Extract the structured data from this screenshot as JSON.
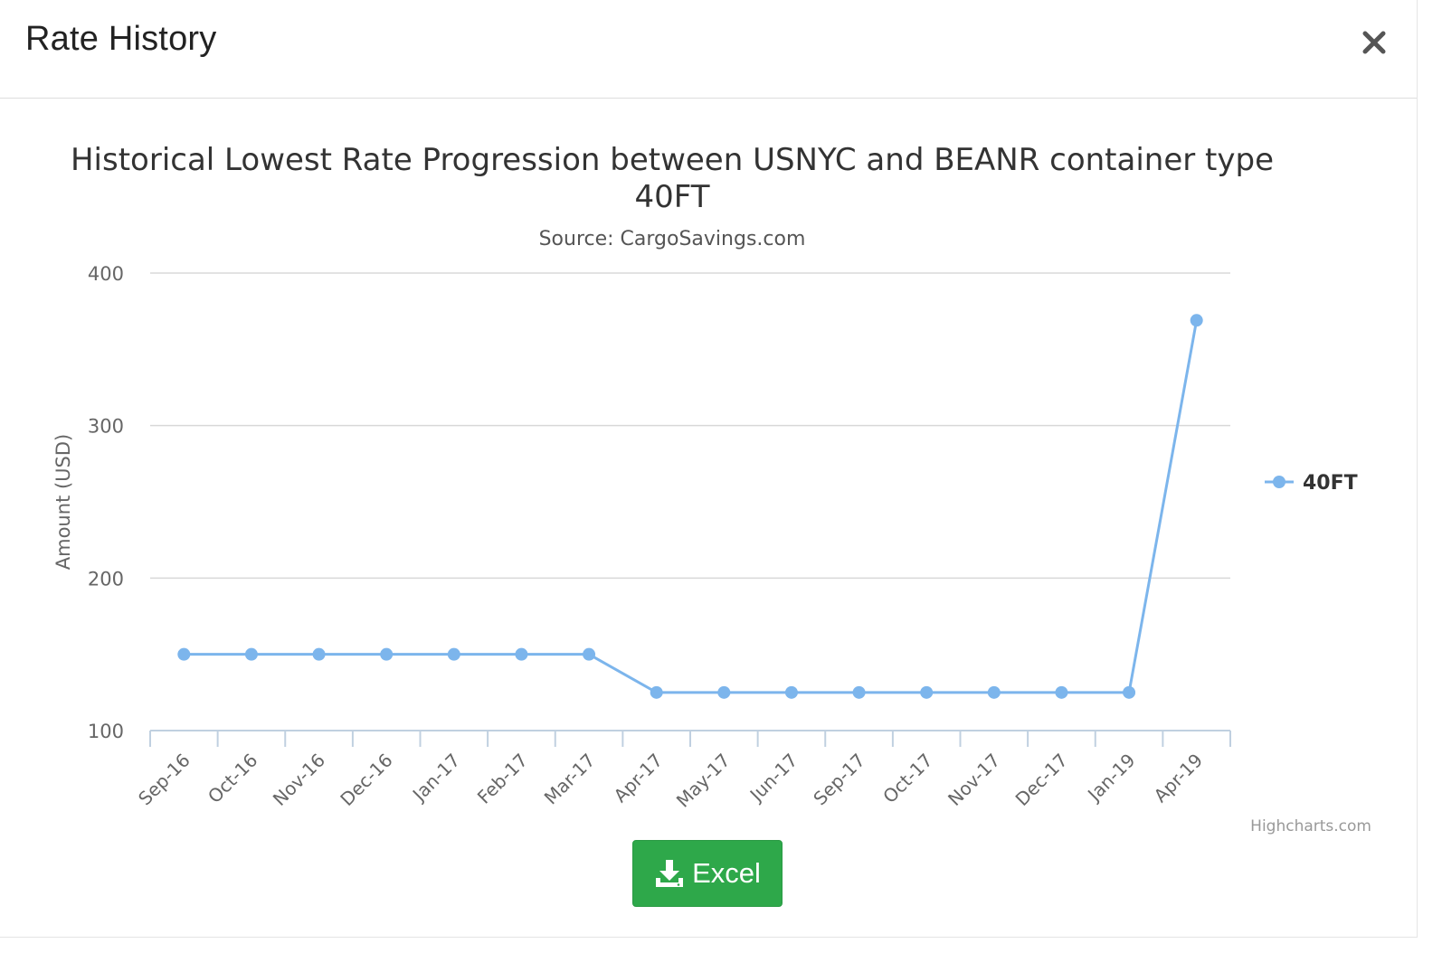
{
  "modal": {
    "title": "Rate History",
    "close_icon": "close-icon"
  },
  "excel_button": {
    "label": "Excel",
    "icon": "download-icon",
    "color": "#2ea84a"
  },
  "credits": "Highcharts.com",
  "chart_data": {
    "type": "line",
    "title": "Historical Lowest Rate Progression between USNYC and BEANR container type 40FT",
    "subtitle": "Source: CargoSavings.com",
    "xlabel": "",
    "ylabel": "Amount (USD)",
    "ylim": [
      100,
      400
    ],
    "yticks": [
      100,
      200,
      300,
      400
    ],
    "grid": true,
    "legend_position": "right",
    "categories": [
      "Sep-16",
      "Oct-16",
      "Nov-16",
      "Dec-16",
      "Jan-17",
      "Feb-17",
      "Mar-17",
      "Apr-17",
      "May-17",
      "Jun-17",
      "Sep-17",
      "Oct-17",
      "Nov-17",
      "Dec-17",
      "Jan-19",
      "Apr-19"
    ],
    "series": [
      {
        "name": "40FT",
        "color": "#7cb5ec",
        "values": [
          150,
          150,
          150,
          150,
          150,
          150,
          150,
          125,
          125,
          125,
          125,
          125,
          125,
          125,
          125,
          369
        ]
      }
    ]
  }
}
